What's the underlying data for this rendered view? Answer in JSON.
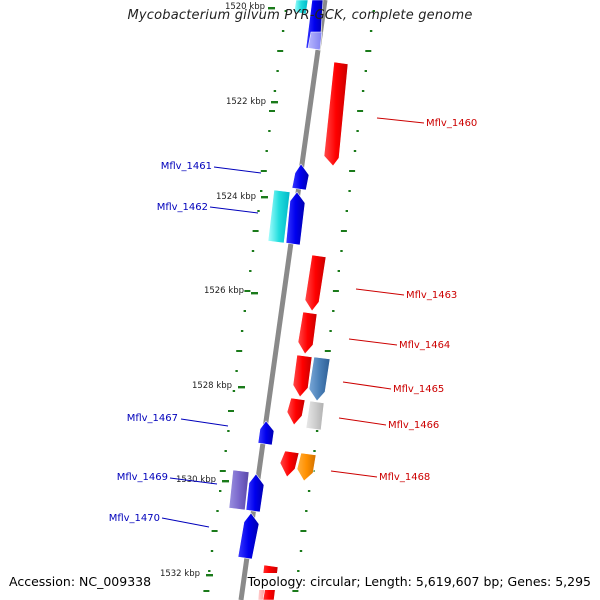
{
  "title": "Mycobacterium gilvum PYR-GCK, complete genome",
  "footer": {
    "accession": "Accession: NC_009338",
    "summary": "Topology: circular; Length: 5,619,607 bp; Genes: 5,295"
  },
  "colors": {
    "backbone": "#8a8a8a",
    "tick": "#1a7a1a",
    "forward_label": "#cc0000",
    "reverse_label": "#0000bb"
  },
  "scale_labels": [
    "1520 kbp",
    "1522 kbp",
    "1524 kbp",
    "1526 kbp",
    "1528 kbp",
    "1530 kbp",
    "1532 kbp"
  ],
  "gene_labels": {
    "forward": [
      "Mflv_1460",
      "Mflv_1463",
      "Mflv_1464",
      "Mflv_1465",
      "Mflv_1466",
      "Mflv_1468"
    ],
    "reverse": [
      "Mflv_1461",
      "Mflv_1462",
      "Mflv_1467",
      "Mflv_1469",
      "Mflv_1470"
    ]
  }
}
